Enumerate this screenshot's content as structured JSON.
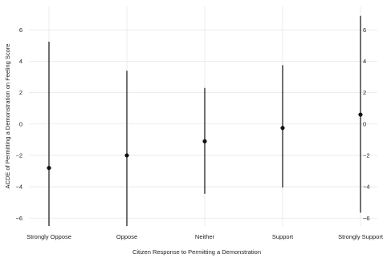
{
  "chart_data": {
    "type": "scatter",
    "categories": [
      "Strongly Oppose",
      "Oppose",
      "Neither",
      "Support",
      "Strongly Support"
    ],
    "series": [
      {
        "values": [
          -2.8,
          -2.0,
          -1.1,
          -0.25,
          0.6
        ],
        "lower": [
          -6.5,
          -6.5,
          -4.45,
          -4.05,
          -5.65
        ],
        "upper": [
          5.25,
          3.4,
          2.3,
          3.75,
          6.9
        ]
      }
    ],
    "xlabel": "Citizen Response to Permitting a Demonstration",
    "ylabel": "ACDE of Permitting a Demonstration on Feeling Score",
    "ylim": [
      -6.5,
      7.5
    ],
    "yticks": [
      -6,
      -4,
      -2,
      0,
      2,
      4,
      6
    ],
    "ytick_labels": [
      "−6",
      "−4",
      "−2",
      "0",
      "2",
      "4",
      "6"
    ],
    "grid": true,
    "secondary_y_axis": true,
    "colors": {
      "point": "#111111",
      "interval": "#222222",
      "grid": "#e6e6e6"
    }
  }
}
